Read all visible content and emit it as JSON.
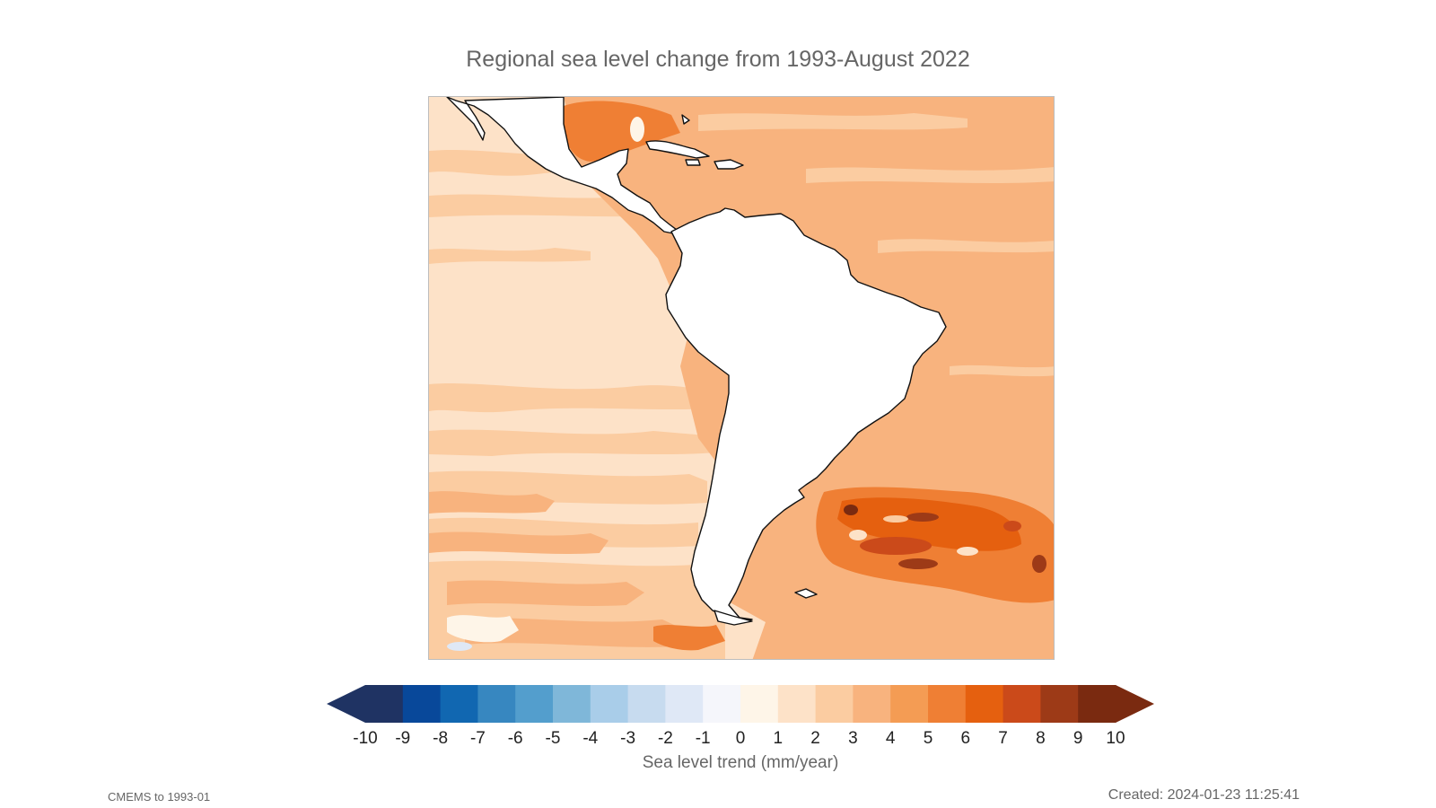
{
  "title": "Regional sea level change from 1993-August 2022",
  "colorbar": {
    "label": "Sea level trend (mm/year)",
    "ticks": [
      "-10",
      "-9",
      "-8",
      "-7",
      "-6",
      "-5",
      "-4",
      "-3",
      "-2",
      "-1",
      "0",
      "1",
      "2",
      "3",
      "4",
      "5",
      "6",
      "7",
      "8",
      "9",
      "10"
    ],
    "colors": [
      "#1f3363",
      "#08489a",
      "#1167b1",
      "#3787c0",
      "#539ecd",
      "#7fb7d9",
      "#a9cde9",
      "#c7dbef",
      "#dfe8f6",
      "#f5f6fb",
      "#fef5e8",
      "#fde2c8",
      "#fbcca1",
      "#f8b37e",
      "#f49c54",
      "#ef7f34",
      "#e5600f",
      "#cb4a1a",
      "#9d3a17",
      "#7a2a10"
    ],
    "low_extension_color": "#1f3363",
    "high_extension_color": "#7a2a10"
  },
  "map": {
    "region": "South America",
    "background_ocean_colors": {
      "pacific": "#fde2c8",
      "atlantic": "#f8b37e",
      "land": "#ffffff",
      "coastline": "#111111"
    }
  },
  "footer": {
    "left": "CMEMS to 1993-01",
    "right": "Created: 2024-01-23 11:25:41"
  }
}
